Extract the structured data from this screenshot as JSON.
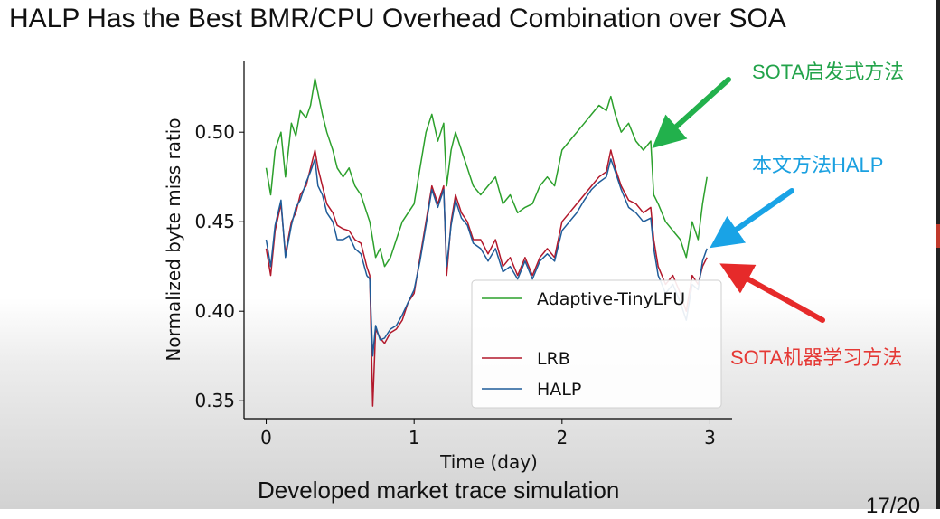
{
  "slide": {
    "title": "HALP Has the Best BMR/CPU Overhead Combination over SOA",
    "subtitle": "Developed market trace simulation",
    "page_number": "17/20"
  },
  "annotations": [
    {
      "text": "SOTA启发式方法",
      "color": "#22a34a"
    },
    {
      "text": "本文方法HALP",
      "color": "#1aa0e0"
    },
    {
      "text": "SOTA机器学习方法",
      "color": "#e53935"
    }
  ],
  "chart_data": {
    "type": "line",
    "xlabel": "Time (day)",
    "ylabel": "Normalized byte miss ratio",
    "xlim": [
      -0.15,
      3.15
    ],
    "ylim": [
      0.34,
      0.54
    ],
    "xticks": [
      "0",
      "1",
      "2",
      "3"
    ],
    "yticks": [
      "0.35",
      "0.40",
      "0.45",
      "0.50"
    ],
    "legend_position": "lower-right",
    "series": [
      {
        "name": "Adaptive-TinyLFU",
        "color": "#2ca02c",
        "x": [
          0,
          0.03,
          0.06,
          0.1,
          0.13,
          0.17,
          0.2,
          0.23,
          0.27,
          0.3,
          0.33,
          0.35,
          0.38,
          0.41,
          0.45,
          0.48,
          0.52,
          0.56,
          0.6,
          0.64,
          0.68,
          0.7,
          0.72,
          0.74,
          0.77,
          0.8,
          0.84,
          0.88,
          0.92,
          0.96,
          1.0,
          1.04,
          1.08,
          1.12,
          1.16,
          1.2,
          1.22,
          1.25,
          1.28,
          1.32,
          1.36,
          1.4,
          1.45,
          1.5,
          1.55,
          1.6,
          1.65,
          1.7,
          1.75,
          1.8,
          1.85,
          1.9,
          1.95,
          2.0,
          2.05,
          2.1,
          2.15,
          2.2,
          2.25,
          2.3,
          2.33,
          2.36,
          2.4,
          2.45,
          2.5,
          2.55,
          2.6,
          2.62,
          2.65,
          2.7,
          2.75,
          2.8,
          2.84,
          2.88,
          2.92,
          2.95,
          2.98
        ],
        "y": [
          0.48,
          0.465,
          0.49,
          0.5,
          0.475,
          0.505,
          0.498,
          0.512,
          0.508,
          0.515,
          0.53,
          0.522,
          0.51,
          0.5,
          0.49,
          0.48,
          0.475,
          0.48,
          0.47,
          0.465,
          0.455,
          0.45,
          0.44,
          0.43,
          0.435,
          0.425,
          0.43,
          0.44,
          0.45,
          0.455,
          0.46,
          0.48,
          0.5,
          0.51,
          0.495,
          0.505,
          0.47,
          0.49,
          0.5,
          0.49,
          0.48,
          0.47,
          0.465,
          0.47,
          0.475,
          0.46,
          0.465,
          0.455,
          0.458,
          0.46,
          0.47,
          0.475,
          0.47,
          0.49,
          0.495,
          0.5,
          0.505,
          0.51,
          0.515,
          0.512,
          0.52,
          0.51,
          0.5,
          0.505,
          0.495,
          0.49,
          0.495,
          0.465,
          0.46,
          0.45,
          0.445,
          0.44,
          0.43,
          0.45,
          0.44,
          0.46,
          0.475
        ]
      },
      {
        "name": "LRB",
        "color": "#b2182b",
        "x": [
          0,
          0.03,
          0.06,
          0.1,
          0.13,
          0.17,
          0.2,
          0.23,
          0.27,
          0.3,
          0.33,
          0.35,
          0.38,
          0.41,
          0.45,
          0.48,
          0.52,
          0.56,
          0.6,
          0.64,
          0.68,
          0.7,
          0.72,
          0.74,
          0.77,
          0.8,
          0.84,
          0.88,
          0.92,
          0.96,
          1.0,
          1.04,
          1.08,
          1.12,
          1.16,
          1.2,
          1.22,
          1.25,
          1.28,
          1.32,
          1.36,
          1.4,
          1.45,
          1.5,
          1.55,
          1.6,
          1.65,
          1.7,
          1.75,
          1.8,
          1.85,
          1.9,
          1.95,
          2.0,
          2.05,
          2.1,
          2.15,
          2.2,
          2.25,
          2.3,
          2.33,
          2.36,
          2.4,
          2.45,
          2.5,
          2.55,
          2.6,
          2.62,
          2.65,
          2.7,
          2.75,
          2.8,
          2.84,
          2.88,
          2.92,
          2.95,
          2.98
        ],
        "y": [
          0.435,
          0.42,
          0.445,
          0.46,
          0.432,
          0.45,
          0.455,
          0.465,
          0.47,
          0.48,
          0.49,
          0.48,
          0.47,
          0.46,
          0.455,
          0.448,
          0.446,
          0.445,
          0.44,
          0.438,
          0.425,
          0.42,
          0.347,
          0.39,
          0.385,
          0.382,
          0.388,
          0.39,
          0.395,
          0.405,
          0.41,
          0.43,
          0.45,
          0.47,
          0.46,
          0.47,
          0.42,
          0.45,
          0.465,
          0.455,
          0.45,
          0.44,
          0.44,
          0.432,
          0.44,
          0.425,
          0.43,
          0.42,
          0.43,
          0.42,
          0.43,
          0.435,
          0.43,
          0.45,
          0.455,
          0.46,
          0.465,
          0.47,
          0.475,
          0.478,
          0.49,
          0.48,
          0.47,
          0.462,
          0.46,
          0.455,
          0.458,
          0.44,
          0.425,
          0.415,
          0.42,
          0.41,
          0.4,
          0.42,
          0.415,
          0.425,
          0.43
        ]
      },
      {
        "name": "HALP",
        "color": "#1f5c99",
        "x": [
          0,
          0.03,
          0.06,
          0.1,
          0.13,
          0.17,
          0.2,
          0.23,
          0.27,
          0.3,
          0.33,
          0.35,
          0.38,
          0.41,
          0.45,
          0.48,
          0.52,
          0.56,
          0.6,
          0.64,
          0.68,
          0.7,
          0.72,
          0.74,
          0.77,
          0.8,
          0.84,
          0.88,
          0.92,
          0.96,
          1.0,
          1.04,
          1.08,
          1.12,
          1.16,
          1.2,
          1.22,
          1.25,
          1.28,
          1.32,
          1.36,
          1.4,
          1.45,
          1.5,
          1.55,
          1.6,
          1.65,
          1.7,
          1.75,
          1.8,
          1.85,
          1.9,
          1.95,
          2.0,
          2.05,
          2.1,
          2.15,
          2.2,
          2.25,
          2.3,
          2.33,
          2.36,
          2.4,
          2.45,
          2.5,
          2.55,
          2.6,
          2.62,
          2.65,
          2.7,
          2.75,
          2.8,
          2.84,
          2.88,
          2.92,
          2.95,
          2.98
        ],
        "y": [
          0.44,
          0.425,
          0.448,
          0.462,
          0.43,
          0.448,
          0.458,
          0.462,
          0.472,
          0.478,
          0.485,
          0.47,
          0.465,
          0.455,
          0.45,
          0.44,
          0.44,
          0.442,
          0.435,
          0.432,
          0.42,
          0.418,
          0.375,
          0.392,
          0.384,
          0.385,
          0.39,
          0.392,
          0.398,
          0.405,
          0.412,
          0.428,
          0.448,
          0.468,
          0.458,
          0.468,
          0.425,
          0.448,
          0.462,
          0.452,
          0.448,
          0.438,
          0.435,
          0.428,
          0.435,
          0.422,
          0.425,
          0.418,
          0.428,
          0.418,
          0.428,
          0.432,
          0.428,
          0.445,
          0.45,
          0.455,
          0.462,
          0.468,
          0.472,
          0.475,
          0.485,
          0.478,
          0.468,
          0.458,
          0.455,
          0.45,
          0.452,
          0.435,
          0.42,
          0.41,
          0.415,
          0.405,
          0.395,
          0.415,
          0.412,
          0.428,
          0.435
        ]
      }
    ]
  }
}
